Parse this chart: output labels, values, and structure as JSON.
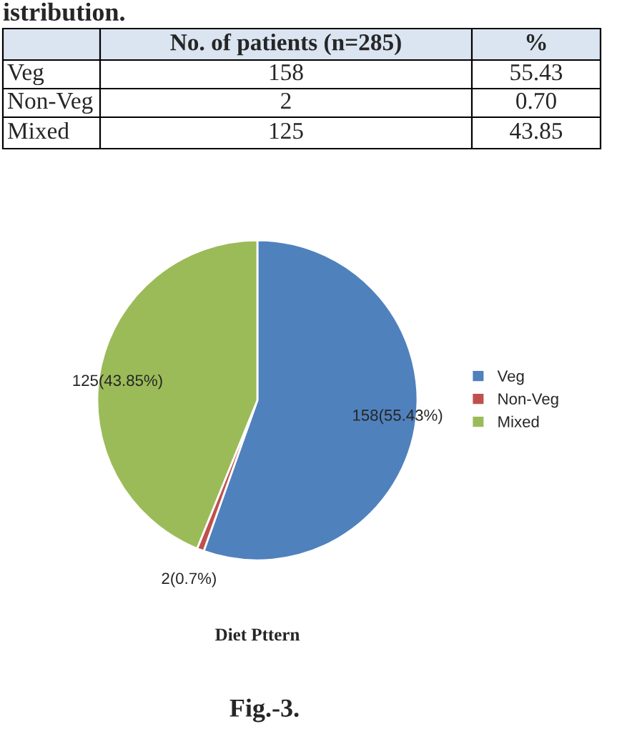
{
  "chart_data": {
    "type": "pie",
    "title": "Diet Pttern",
    "categories": [
      "Veg",
      "Non-Veg",
      "Mixed"
    ],
    "values": [
      158,
      2,
      125
    ],
    "colors": [
      "#4f81bd",
      "#c0504d",
      "#9bbb59"
    ],
    "value_labels": [
      "158(55.43%)",
      "2(0.7%)",
      "125(43.85%)"
    ],
    "legend": "right",
    "annotations": [
      "istribution.",
      "No. of patients (n=285)",
      "%",
      "Veg",
      "158",
      "55.43",
      "Non-Veg",
      "2",
      "0.70",
      "Mixed",
      "125",
      "43.85",
      "Fig.-3."
    ]
  }
}
